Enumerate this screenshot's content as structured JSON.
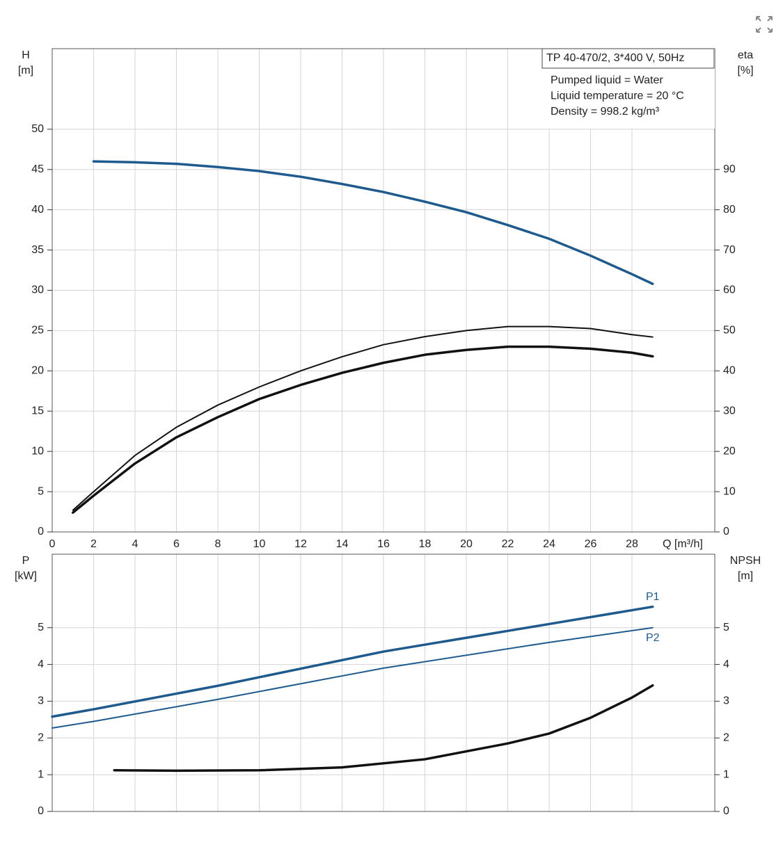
{
  "chart_data": [
    {
      "type": "line",
      "ylabel": "H",
      "yunit": "[m]",
      "y2label": "eta",
      "y2unit": "[%]",
      "xlabel": "Q [m³/h]",
      "xlim": [
        0,
        32
      ],
      "xticks": [
        0,
        2,
        4,
        6,
        8,
        10,
        12,
        14,
        16,
        18,
        20,
        22,
        24,
        26,
        28
      ],
      "ylim": [
        0,
        60
      ],
      "yticks": [
        0,
        5,
        10,
        15,
        20,
        25,
        30,
        35,
        40,
        45,
        50
      ],
      "y2lim": [
        0,
        120
      ],
      "y2ticks": [
        0,
        10,
        20,
        30,
        40,
        50,
        60,
        70,
        80,
        90
      ],
      "grid": true,
      "info": {
        "title": "TP 40-470/2, 3*400 V, 50Hz",
        "lines": [
          "Pumped liquid = Water",
          "Liquid temperature = 20 °C",
          "Density = 998.2 kg/m³"
        ]
      },
      "series": [
        {
          "color": "#1f5a8e",
          "linewidth": 3.5,
          "x": [
            2,
            4,
            6,
            8,
            10,
            12,
            14,
            16,
            18,
            20,
            22,
            24,
            26,
            28,
            29
          ],
          "values": [
            46,
            45.9,
            45.7,
            45.3,
            44.8,
            44.1,
            43.2,
            42.2,
            41,
            39.7,
            38.1,
            36.4,
            34.3,
            32,
            30.8
          ]
        },
        {
          "color": "#111111",
          "linewidth": 2,
          "axis": "y2",
          "x": [
            1,
            2,
            4,
            6,
            8,
            10,
            12,
            14,
            16,
            18,
            20,
            22,
            24,
            26,
            28,
            29
          ],
          "values": [
            5.4,
            10,
            19,
            26,
            31.5,
            36,
            40,
            43.5,
            46.5,
            48.5,
            50,
            51,
            51,
            50.5,
            49,
            48.4
          ]
        },
        {
          "color": "#111111",
          "linewidth": 3.5,
          "axis": "y2",
          "x": [
            1,
            2,
            4,
            6,
            8,
            10,
            12,
            14,
            16,
            18,
            20,
            22,
            24,
            26,
            28,
            29
          ],
          "values": [
            4.8,
            9,
            17,
            23.5,
            28.5,
            33,
            36.5,
            39.5,
            42,
            44,
            45.2,
            46,
            46,
            45.5,
            44.5,
            43.6
          ]
        }
      ]
    },
    {
      "type": "line",
      "ylabel": "P",
      "yunit": "[kW]",
      "y2label": "NPSH",
      "y2unit": "[m]",
      "xlim": [
        0,
        32
      ],
      "xticks": [
        0,
        2,
        4,
        6,
        8,
        10,
        12,
        14,
        16,
        18,
        20,
        22,
        24,
        26,
        28
      ],
      "ylim": [
        0,
        7
      ],
      "yticks": [
        0,
        1,
        2,
        3,
        4,
        5
      ],
      "y2lim": [
        0,
        7
      ],
      "y2ticks": [
        0,
        1,
        2,
        3,
        4,
        5
      ],
      "grid": true,
      "series": [
        {
          "name": "P1",
          "color": "#1f5a8e",
          "linewidth": 3.5,
          "x": [
            0,
            2,
            8,
            16,
            24,
            29
          ],
          "values": [
            2.58,
            2.78,
            3.42,
            4.35,
            5.1,
            5.57
          ]
        },
        {
          "name": "P2",
          "color": "#1f5a8e",
          "linewidth": 2,
          "x": [
            0,
            2,
            8,
            16,
            24,
            29
          ],
          "values": [
            2.27,
            2.45,
            3.05,
            3.9,
            4.6,
            5.0
          ]
        },
        {
          "color": "#111111",
          "linewidth": 3.5,
          "axis": "y2",
          "x": [
            3,
            6,
            10,
            14,
            18,
            22,
            24,
            26,
            28,
            29
          ],
          "values": [
            1.12,
            1.11,
            1.12,
            1.2,
            1.42,
            1.85,
            2.12,
            2.55,
            3.1,
            3.43
          ]
        }
      ]
    }
  ]
}
